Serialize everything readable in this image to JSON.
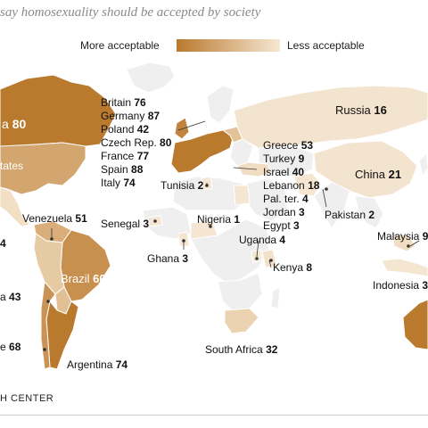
{
  "title": "say homosexuality should be accepted by society",
  "legend": {
    "more": "More acceptable",
    "less": "Less acceptable",
    "color_more": "#b97a2e",
    "color_less": "#f6e7d2"
  },
  "source": "H CENTER",
  "countries": {
    "canada": {
      "name": "a",
      "value": "80"
    },
    "us": {
      "name": "tates",
      "value": ""
    },
    "mexico_frag": {
      "name": "",
      "value": "4"
    },
    "russia": {
      "name": "Russia",
      "value": "16"
    },
    "china": {
      "name": "China",
      "value": "21"
    },
    "pakistan": {
      "name": "Pakistan",
      "value": "2"
    },
    "tunisia": {
      "name": "Tunisia",
      "value": "2"
    },
    "senegal": {
      "name": "Senegal",
      "value": "3"
    },
    "nigeria": {
      "name": "Nigeria",
      "value": "1"
    },
    "ghana": {
      "name": "Ghana",
      "value": "3"
    },
    "uganda": {
      "name": "Uganda",
      "value": "4"
    },
    "kenya": {
      "name": "Kenya",
      "value": "8"
    },
    "south_africa": {
      "name": "South Africa",
      "value": "32"
    },
    "venezuela": {
      "name": "Venezuela",
      "value": "51"
    },
    "brazil": {
      "name": "Brazil",
      "value": "60"
    },
    "bolivia_frag": {
      "name": "a",
      "value": "43"
    },
    "chile_frag": {
      "name": "e",
      "value": "68"
    },
    "argentina": {
      "name": "Argentina",
      "value": "74"
    },
    "malaysia": {
      "name": "Malaysia",
      "value": "9"
    },
    "indonesia": {
      "name": "Indonesia",
      "value": "3"
    }
  },
  "europe_list": [
    {
      "name": "Britain",
      "value": "76"
    },
    {
      "name": "Germany",
      "value": "87"
    },
    {
      "name": "Poland",
      "value": "42"
    },
    {
      "name": "Czech Rep.",
      "value": "80"
    },
    {
      "name": "France",
      "value": "77"
    },
    {
      "name": "Spain",
      "value": "88"
    },
    {
      "name": "Italy",
      "value": "74"
    }
  ],
  "mideast_list": [
    {
      "name": "Greece",
      "value": "53"
    },
    {
      "name": "Turkey",
      "value": "9"
    },
    {
      "name": "Israel",
      "value": "40"
    },
    {
      "name": "Lebanon",
      "value": "18"
    },
    {
      "name": "Pal. ter.",
      "value": "4"
    },
    {
      "name": "Jordan",
      "value": "3"
    },
    {
      "name": "Egypt",
      "value": "3"
    }
  ]
}
